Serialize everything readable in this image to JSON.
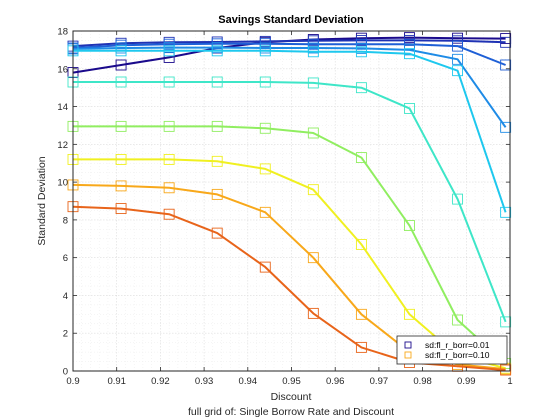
{
  "chart_data": {
    "type": "line",
    "title": "Savings Standard Deviation",
    "xlabel": "Discount",
    "ylabel": "Standard Deviation",
    "caption": "full grid of: Single Borrow Rate and Discount",
    "xlim": [
      0.9,
      1.0
    ],
    "ylim": [
      0,
      18
    ],
    "xticks": [
      "0.9",
      "0.91",
      "0.92",
      "0.93",
      "0.94",
      "0.95",
      "0.96",
      "0.97",
      "0.98",
      "0.99",
      "1"
    ],
    "yticks": [
      "0",
      "2",
      "4",
      "6",
      "8",
      "10",
      "12",
      "14",
      "16",
      "18"
    ],
    "grid": true,
    "legend_position": "bottom-right",
    "x": [
      0.9,
      0.911,
      0.922,
      0.933,
      0.944,
      0.955,
      0.966,
      0.977,
      0.988,
      0.999
    ],
    "series": [
      {
        "name": "sd:fl_r_borr=0.01",
        "color": "#1a0a8c",
        "values": [
          15.8,
          16.2,
          16.6,
          17.1,
          17.4,
          17.55,
          17.62,
          17.65,
          17.62,
          17.6
        ]
      },
      {
        "name": "",
        "color": "#1f32b4",
        "values": [
          17.2,
          17.35,
          17.4,
          17.42,
          17.45,
          17.48,
          17.5,
          17.5,
          17.48,
          17.4
        ]
      },
      {
        "name": "",
        "color": "#1e5fd6",
        "values": [
          17.1,
          17.25,
          17.3,
          17.32,
          17.33,
          17.3,
          17.3,
          17.3,
          17.2,
          16.2
        ]
      },
      {
        "name": "",
        "color": "#1e8be6",
        "values": [
          17.05,
          17.1,
          17.12,
          17.12,
          17.1,
          17.1,
          17.08,
          17.0,
          16.5,
          12.9
        ]
      },
      {
        "name": "",
        "color": "#1ec8ee",
        "values": [
          16.95,
          16.95,
          16.95,
          16.95,
          16.95,
          16.9,
          16.9,
          16.8,
          15.9,
          8.4
        ]
      },
      {
        "name": "",
        "color": "#3ee6c8",
        "values": [
          15.3,
          15.3,
          15.3,
          15.3,
          15.3,
          15.25,
          15.0,
          13.9,
          9.1,
          2.6
        ]
      },
      {
        "name": "",
        "color": "#90ee60",
        "values": [
          12.95,
          12.95,
          12.95,
          12.95,
          12.85,
          12.6,
          11.3,
          7.7,
          2.7,
          0.4
        ]
      },
      {
        "name": "",
        "color": "#f0f020",
        "values": [
          11.2,
          11.2,
          11.2,
          11.1,
          10.7,
          9.6,
          6.7,
          3.0,
          0.8,
          0.15
        ]
      },
      {
        "name": "sd:fl_r_borr=0.10",
        "color": "#f8a81a",
        "values": [
          9.85,
          9.8,
          9.7,
          9.35,
          8.4,
          6.0,
          3.0,
          1.0,
          0.35,
          0.1
        ]
      },
      {
        "name": "",
        "color": "#e8641a",
        "values": [
          8.7,
          8.6,
          8.3,
          7.3,
          5.5,
          3.05,
          1.25,
          0.45,
          0.25,
          0.05
        ]
      }
    ]
  }
}
